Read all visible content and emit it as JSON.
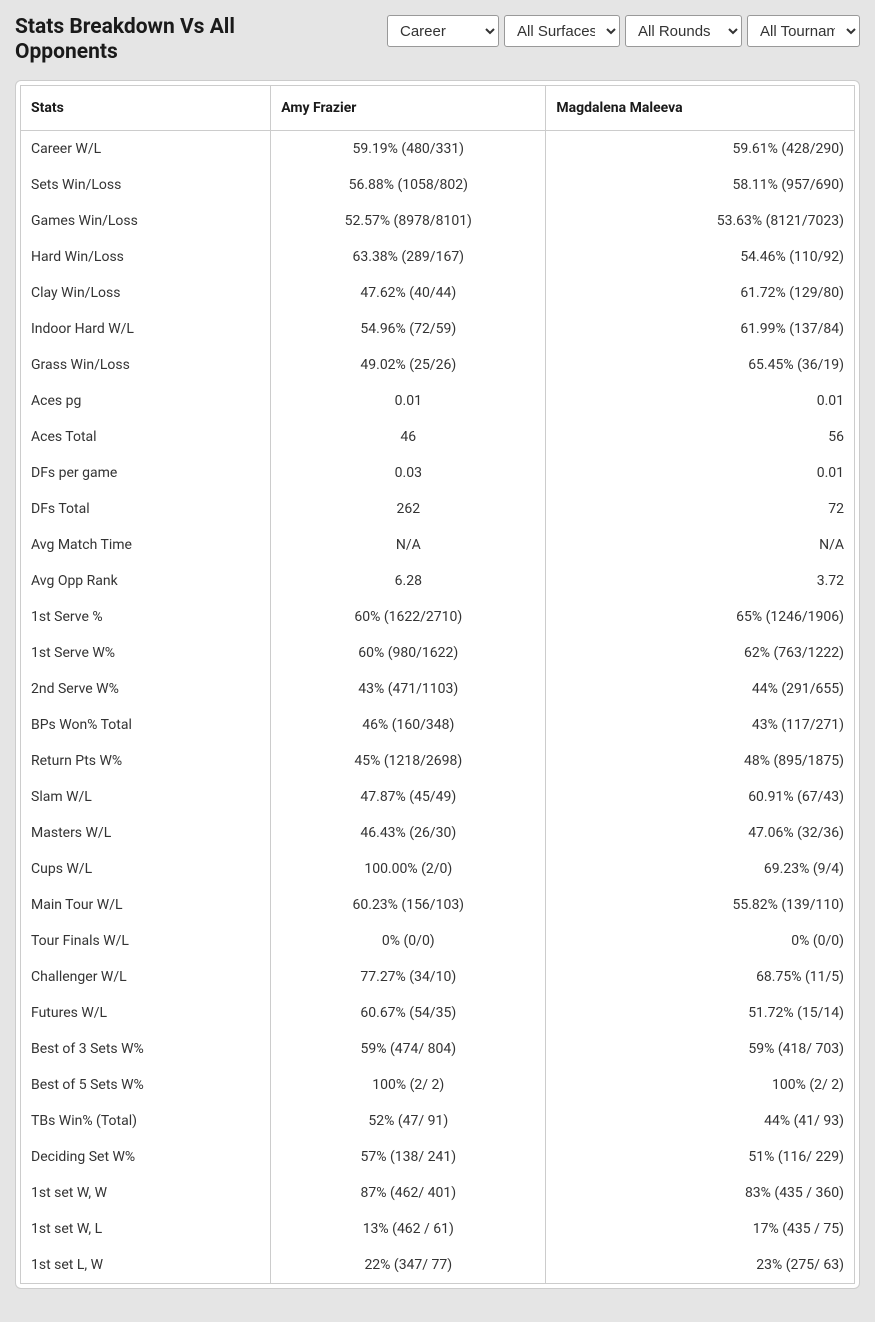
{
  "header": {
    "title": "Stats Breakdown Vs All Opponents"
  },
  "filters": {
    "timeframe": {
      "selected": "Career",
      "options": [
        "Career"
      ]
    },
    "surface": {
      "selected": "All Surfaces",
      "options": [
        "All Surfaces"
      ]
    },
    "round": {
      "selected": "All Rounds",
      "options": [
        "All Rounds"
      ]
    },
    "tournament": {
      "selected": "All Tournaments",
      "options": [
        "All Tournaments"
      ]
    }
  },
  "table": {
    "columns": [
      "Stats",
      "Amy Frazier",
      "Magdalena Maleeva"
    ],
    "rows": [
      {
        "stat": "Career W/L",
        "p1": "59.19% (480/331)",
        "p2": "59.61% (428/290)"
      },
      {
        "stat": "Sets Win/Loss",
        "p1": "56.88% (1058/802)",
        "p2": "58.11% (957/690)"
      },
      {
        "stat": "Games Win/Loss",
        "p1": "52.57% (8978/8101)",
        "p2": "53.63% (8121/7023)"
      },
      {
        "stat": "Hard Win/Loss",
        "p1": "63.38% (289/167)",
        "p2": "54.46% (110/92)"
      },
      {
        "stat": "Clay Win/Loss",
        "p1": "47.62% (40/44)",
        "p2": "61.72% (129/80)"
      },
      {
        "stat": "Indoor Hard W/L",
        "p1": "54.96% (72/59)",
        "p2": "61.99% (137/84)"
      },
      {
        "stat": "Grass Win/Loss",
        "p1": "49.02% (25/26)",
        "p2": "65.45% (36/19)"
      },
      {
        "stat": "Aces pg",
        "p1": "0.01",
        "p2": "0.01"
      },
      {
        "stat": "Aces Total",
        "p1": "46",
        "p2": "56"
      },
      {
        "stat": "DFs per game",
        "p1": "0.03",
        "p2": "0.01"
      },
      {
        "stat": "DFs Total",
        "p1": "262",
        "p2": "72"
      },
      {
        "stat": "Avg Match Time",
        "p1": "N/A",
        "p2": "N/A"
      },
      {
        "stat": "Avg Opp Rank",
        "p1": "6.28",
        "p2": "3.72"
      },
      {
        "stat": "1st Serve %",
        "p1": "60% (1622/2710)",
        "p2": "65% (1246/1906)"
      },
      {
        "stat": "1st Serve W%",
        "p1": "60% (980/1622)",
        "p2": "62% (763/1222)"
      },
      {
        "stat": "2nd Serve W%",
        "p1": "43% (471/1103)",
        "p2": "44% (291/655)"
      },
      {
        "stat": "BPs Won% Total",
        "p1": "46% (160/348)",
        "p2": "43% (117/271)"
      },
      {
        "stat": "Return Pts W%",
        "p1": "45% (1218/2698)",
        "p2": "48% (895/1875)"
      },
      {
        "stat": "Slam W/L",
        "p1": "47.87% (45/49)",
        "p2": "60.91% (67/43)"
      },
      {
        "stat": "Masters W/L",
        "p1": "46.43% (26/30)",
        "p2": "47.06% (32/36)"
      },
      {
        "stat": "Cups W/L",
        "p1": "100.00% (2/0)",
        "p2": "69.23% (9/4)"
      },
      {
        "stat": "Main Tour W/L",
        "p1": "60.23% (156/103)",
        "p2": "55.82% (139/110)"
      },
      {
        "stat": "Tour Finals W/L",
        "p1": "0% (0/0)",
        "p2": "0% (0/0)"
      },
      {
        "stat": "Challenger W/L",
        "p1": "77.27% (34/10)",
        "p2": "68.75% (11/5)"
      },
      {
        "stat": "Futures W/L",
        "p1": "60.67% (54/35)",
        "p2": "51.72% (15/14)"
      },
      {
        "stat": "Best of 3 Sets W%",
        "p1": "59% (474/ 804)",
        "p2": "59% (418/ 703)"
      },
      {
        "stat": "Best of 5 Sets W%",
        "p1": "100% (2/ 2)",
        "p2": "100% (2/ 2)"
      },
      {
        "stat": "TBs Win% (Total)",
        "p1": "52% (47/ 91)",
        "p2": "44% (41/ 93)"
      },
      {
        "stat": "Deciding Set W%",
        "p1": "57% (138/ 241)",
        "p2": "51% (116/ 229)"
      },
      {
        "stat": "1st set W, W",
        "p1": "87% (462/ 401)",
        "p2": "83% (435 / 360)"
      },
      {
        "stat": "1st set W, L",
        "p1": "13% (462 / 61)",
        "p2": "17% (435 / 75)"
      },
      {
        "stat": "1st set L, W",
        "p1": "22% (347/ 77)",
        "p2": "23% (275/ 63)"
      }
    ]
  }
}
